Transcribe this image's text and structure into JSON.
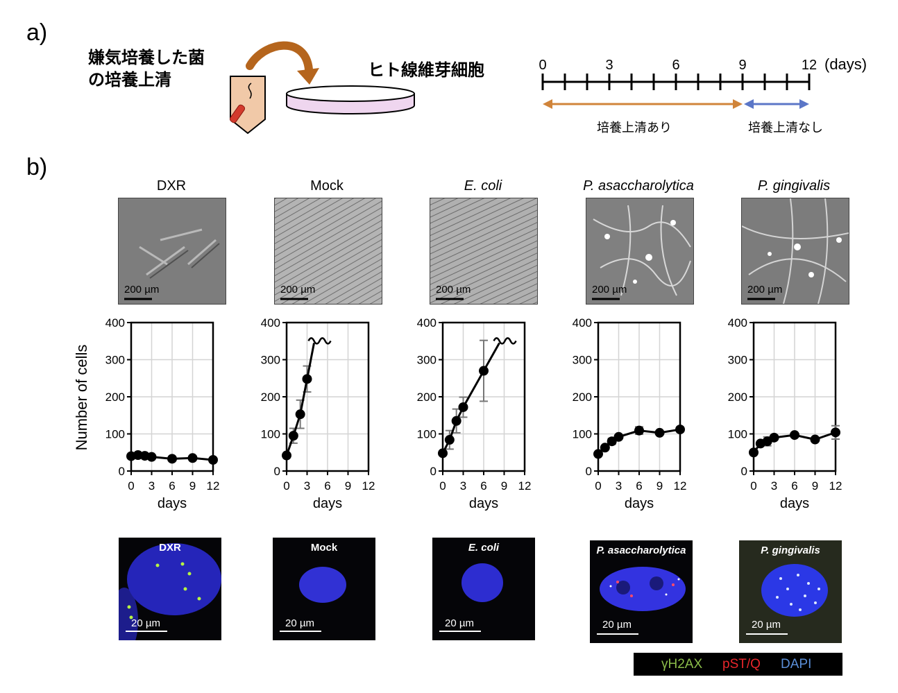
{
  "panel_a": {
    "label": "a)",
    "supernatant_text_line1": "嫌気培養した菌",
    "supernatant_text_line2": "の培養上清",
    "fibroblast_text": "ヒト線維芽細胞",
    "timeline": {
      "ticks": [
        "0",
        "3",
        "6",
        "9",
        "12"
      ],
      "unit": "(days)",
      "with_supernatant": "培養上清あり",
      "without_supernatant": "培養上清なし",
      "arrow_color_with": "#d0843a",
      "arrow_color_without": "#5b76c7"
    }
  },
  "panel_b": {
    "label": "b)",
    "ylabel": "Number of cells",
    "xlabel": "days",
    "scale_phase": "200 µm",
    "scale_fluor": "20 µm",
    "columns": [
      {
        "title": "DXR",
        "italic": false
      },
      {
        "title": "Mock",
        "italic": false
      },
      {
        "title": "E. coli",
        "italic": true
      },
      {
        "title": "P. asaccharolytica",
        "italic": true
      },
      {
        "title": "P. gingivalis",
        "italic": true
      }
    ],
    "legend": {
      "items": [
        {
          "label": "γH2AX",
          "color": "#8bbd4a"
        },
        {
          "label": "pST/Q",
          "color": "#e8262b"
        },
        {
          "label": "DAPI",
          "color": "#5b8fd9"
        }
      ]
    }
  },
  "chart_data": [
    {
      "type": "line",
      "title": "DXR",
      "xlabel": "days",
      "ylabel": "Number of cells",
      "xlim": [
        0,
        12
      ],
      "ylim": [
        0,
        400
      ],
      "xticks": [
        0,
        3,
        6,
        9,
        12
      ],
      "yticks": [
        0,
        100,
        200,
        300,
        400
      ],
      "grid": true,
      "x": [
        0,
        1,
        2,
        3,
        6,
        9,
        12
      ],
      "y": [
        40,
        43,
        41,
        38,
        33,
        35,
        30
      ],
      "err": [
        3,
        3,
        3,
        3,
        3,
        3,
        3
      ],
      "break": false
    },
    {
      "type": "line",
      "title": "Mock",
      "xlabel": "days",
      "ylabel": "Number of cells",
      "xlim": [
        0,
        12
      ],
      "ylim": [
        0,
        400
      ],
      "xticks": [
        0,
        3,
        6,
        9,
        12
      ],
      "yticks": [
        0,
        100,
        200,
        300,
        400
      ],
      "grid": true,
      "x": [
        0,
        1,
        2,
        3
      ],
      "y": [
        42,
        95,
        153,
        248
      ],
      "err": [
        4,
        20,
        38,
        35
      ],
      "break": true
    },
    {
      "type": "line",
      "title": "E. coli",
      "xlabel": "days",
      "ylabel": "Number of cells",
      "xlim": [
        0,
        12
      ],
      "ylim": [
        0,
        400
      ],
      "xticks": [
        0,
        3,
        6,
        9,
        12
      ],
      "yticks": [
        0,
        100,
        200,
        300,
        400
      ],
      "grid": true,
      "x": [
        0,
        1,
        2,
        3,
        6
      ],
      "y": [
        48,
        84,
        135,
        172,
        270
      ],
      "err": [
        4,
        25,
        32,
        27,
        82
      ],
      "break": true
    },
    {
      "type": "line",
      "title": "P. asaccharolytica",
      "xlabel": "days",
      "ylabel": "Number of cells",
      "xlim": [
        0,
        12
      ],
      "ylim": [
        0,
        400
      ],
      "xticks": [
        0,
        3,
        6,
        9,
        12
      ],
      "yticks": [
        0,
        100,
        200,
        300,
        400
      ],
      "grid": true,
      "x": [
        0,
        1,
        2,
        3,
        6,
        9,
        12
      ],
      "y": [
        46,
        63,
        80,
        92,
        109,
        103,
        112
      ],
      "err": [
        3,
        4,
        8,
        5,
        10,
        4,
        6
      ],
      "break": false
    },
    {
      "type": "line",
      "title": "P. gingivalis",
      "xlabel": "days",
      "ylabel": "Number of cells",
      "xlim": [
        0,
        12
      ],
      "ylim": [
        0,
        400
      ],
      "xticks": [
        0,
        3,
        6,
        9,
        12
      ],
      "yticks": [
        0,
        100,
        200,
        300,
        400
      ],
      "grid": true,
      "x": [
        0,
        1,
        2,
        3,
        6,
        9,
        12
      ],
      "y": [
        50,
        74,
        80,
        90,
        97,
        85,
        104
      ],
      "err": [
        3,
        5,
        12,
        6,
        5,
        5,
        18
      ],
      "break": false
    }
  ]
}
